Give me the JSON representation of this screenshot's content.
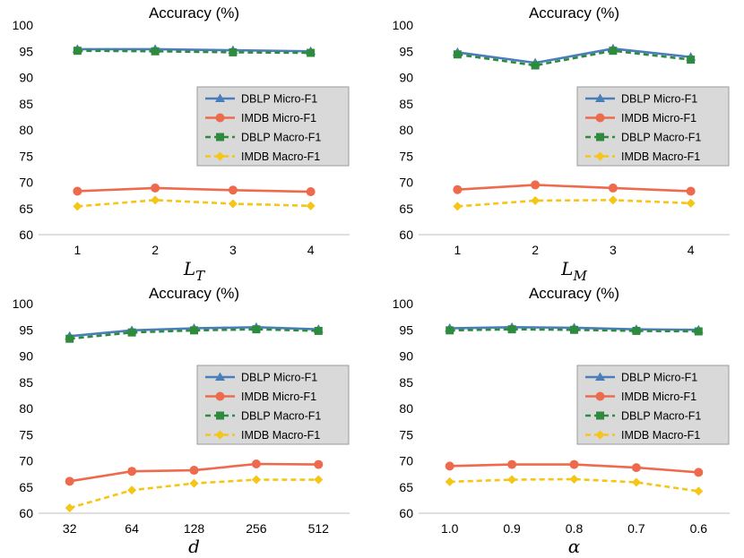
{
  "chart_data": [
    {
      "type": "line",
      "title": "Accuracy (%)",
      "xlabel": "L",
      "xlabel_sub": "T",
      "ylabel": "",
      "ylim": [
        60,
        100
      ],
      "yticks": [
        60,
        65,
        70,
        75,
        80,
        85,
        90,
        95,
        100
      ],
      "categories": [
        "1",
        "2",
        "3",
        "4"
      ],
      "legend_position": "center-right",
      "series": [
        {
          "name": "DBLP Micro-F1",
          "color": "#4a7ebb",
          "marker": "triangle",
          "dash": "solid",
          "values": [
            95.4,
            95.4,
            95.2,
            95.0
          ]
        },
        {
          "name": "IMDB Micro-F1",
          "color": "#ee6a4c",
          "marker": "circle",
          "dash": "solid",
          "values": [
            68.3,
            68.9,
            68.5,
            68.2
          ]
        },
        {
          "name": "DBLP Macro-F1",
          "color": "#2e8b3e",
          "marker": "square",
          "dash": "dashed",
          "values": [
            95.1,
            95.0,
            94.8,
            94.7
          ]
        },
        {
          "name": "IMDB Macro-F1",
          "color": "#f5c518",
          "marker": "diamond",
          "dash": "dashed",
          "values": [
            65.4,
            66.6,
            65.9,
            65.5
          ]
        }
      ]
    },
    {
      "type": "line",
      "title": "Accuracy (%)",
      "xlabel": "L",
      "xlabel_sub": "M",
      "ylabel": "",
      "ylim": [
        60,
        100
      ],
      "yticks": [
        60,
        65,
        70,
        75,
        80,
        85,
        90,
        95,
        100
      ],
      "categories": [
        "1",
        "2",
        "3",
        "4"
      ],
      "legend_position": "center-right",
      "series": [
        {
          "name": "DBLP Micro-F1",
          "color": "#4a7ebb",
          "marker": "triangle",
          "dash": "solid",
          "values": [
            94.8,
            92.8,
            95.5,
            93.9
          ]
        },
        {
          "name": "IMDB Micro-F1",
          "color": "#ee6a4c",
          "marker": "circle",
          "dash": "solid",
          "values": [
            68.6,
            69.5,
            68.9,
            68.3
          ]
        },
        {
          "name": "DBLP Macro-F1",
          "color": "#2e8b3e",
          "marker": "square",
          "dash": "dashed",
          "values": [
            94.4,
            92.3,
            95.1,
            93.4
          ]
        },
        {
          "name": "IMDB Macro-F1",
          "color": "#f5c518",
          "marker": "diamond",
          "dash": "dashed",
          "values": [
            65.4,
            66.5,
            66.6,
            66.0
          ]
        }
      ]
    },
    {
      "type": "line",
      "title": "Accuracy (%)",
      "xlabel": "d",
      "xlabel_sub": "",
      "ylabel": "",
      "ylim": [
        60,
        100
      ],
      "yticks": [
        60,
        65,
        70,
        75,
        80,
        85,
        90,
        95,
        100
      ],
      "categories": [
        "32",
        "64",
        "128",
        "256",
        "512"
      ],
      "legend_position": "center-right",
      "series": [
        {
          "name": "DBLP Micro-F1",
          "color": "#4a7ebb",
          "marker": "triangle",
          "dash": "solid",
          "values": [
            93.8,
            94.9,
            95.3,
            95.5,
            95.1
          ]
        },
        {
          "name": "IMDB Micro-F1",
          "color": "#ee6a4c",
          "marker": "circle",
          "dash": "solid",
          "values": [
            66.1,
            68.0,
            68.2,
            69.4,
            69.3
          ]
        },
        {
          "name": "DBLP Macro-F1",
          "color": "#2e8b3e",
          "marker": "square",
          "dash": "dashed",
          "values": [
            93.3,
            94.5,
            94.9,
            95.1,
            94.8
          ]
        },
        {
          "name": "IMDB Macro-F1",
          "color": "#f5c518",
          "marker": "diamond",
          "dash": "dashed",
          "values": [
            61.0,
            64.4,
            65.7,
            66.4,
            66.4
          ]
        }
      ]
    },
    {
      "type": "line",
      "title": "Accuracy (%)",
      "xlabel": "α",
      "xlabel_sub": "",
      "ylabel": "",
      "ylim": [
        60,
        100
      ],
      "yticks": [
        60,
        65,
        70,
        75,
        80,
        85,
        90,
        95,
        100
      ],
      "categories": [
        "1.0",
        "0.9",
        "0.8",
        "0.7",
        "0.6"
      ],
      "legend_position": "center-right",
      "series": [
        {
          "name": "DBLP Micro-F1",
          "color": "#4a7ebb",
          "marker": "triangle",
          "dash": "solid",
          "values": [
            95.3,
            95.5,
            95.4,
            95.1,
            95.0
          ]
        },
        {
          "name": "IMDB Micro-F1",
          "color": "#ee6a4c",
          "marker": "circle",
          "dash": "solid",
          "values": [
            69.0,
            69.3,
            69.3,
            68.7,
            67.8
          ]
        },
        {
          "name": "DBLP Macro-F1",
          "color": "#2e8b3e",
          "marker": "square",
          "dash": "dashed",
          "values": [
            94.9,
            95.1,
            95.0,
            94.8,
            94.7
          ]
        },
        {
          "name": "IMDB Macro-F1",
          "color": "#f5c518",
          "marker": "diamond",
          "dash": "dashed",
          "values": [
            66.0,
            66.4,
            66.5,
            65.9,
            64.2
          ]
        }
      ]
    }
  ]
}
